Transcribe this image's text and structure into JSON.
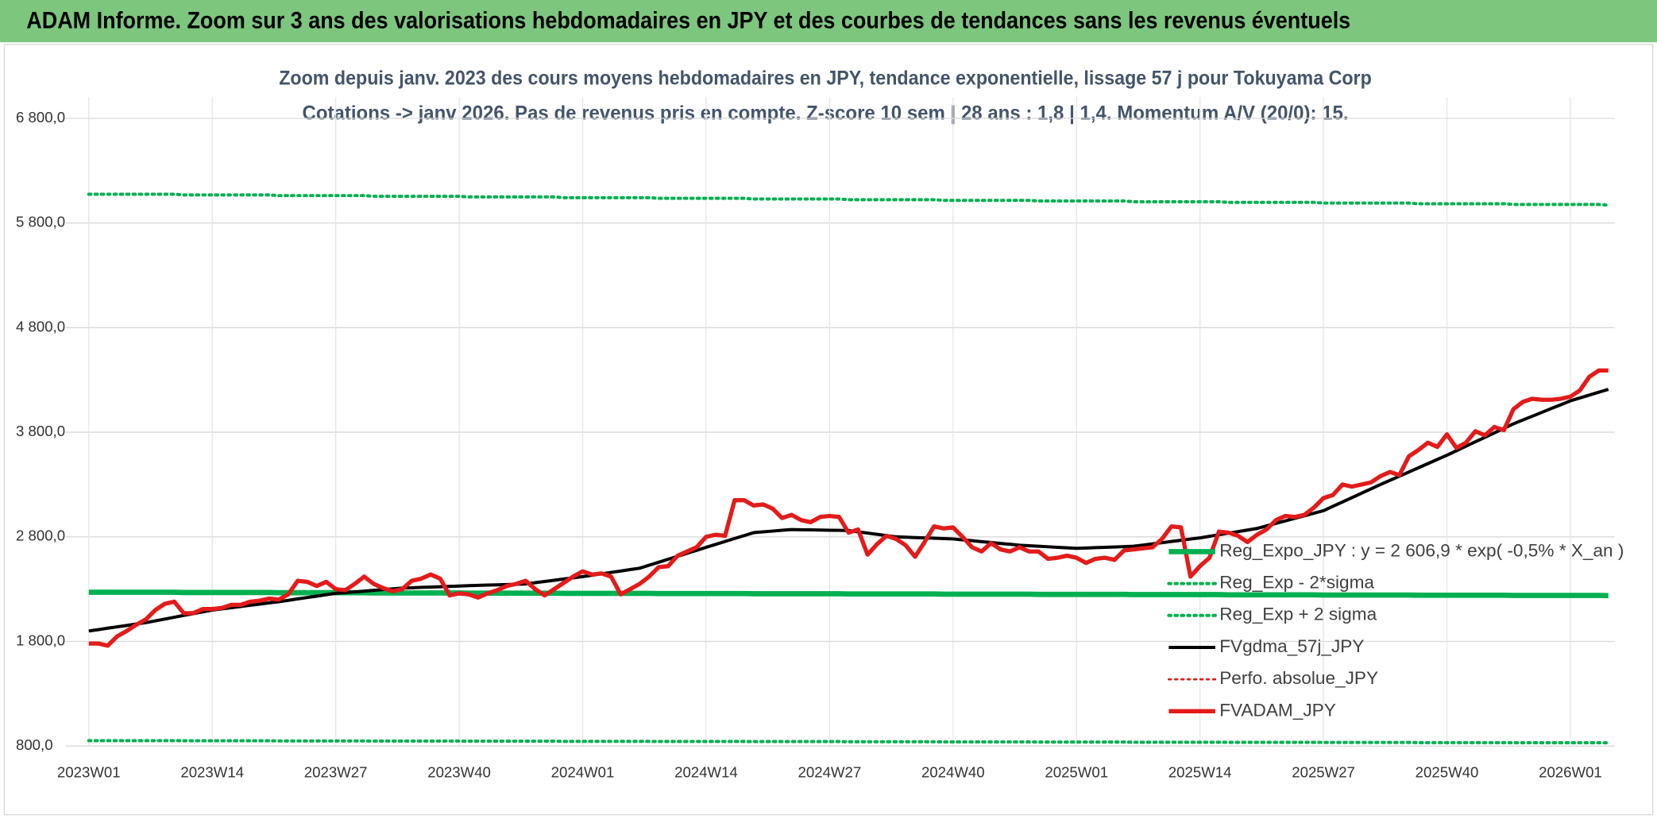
{
  "header": {
    "title": "ADAM Informe. Zoom sur 3 ans des valorisations hebdomadaires en JPY et des courbes de tendances sans les revenus éventuels"
  },
  "chart_data": {
    "type": "line",
    "title": "Zoom depuis janv. 2023 des cours moyens hebdomadaires en JPY, tendance exponentielle, lissage 57 j pour Tokuyama Corp",
    "subtitle": "Cotations -> janv 2026. Pas de revenus pris en compte. Z-score 10 sem | 28 ans : 1,8 | 1,4. Momentum A/V (20/0): 15.",
    "grid": true,
    "legend": "right",
    "ylim": [
      800,
      6800
    ],
    "yticks": [
      {
        "value": 800,
        "label": "800,0"
      },
      {
        "value": 1800,
        "label": "1 800,0"
      },
      {
        "value": 2800,
        "label": "2 800,0"
      },
      {
        "value": 3800,
        "label": "3 800,0"
      },
      {
        "value": 4800,
        "label": "4 800,0"
      },
      {
        "value": 5800,
        "label": "5 800,0"
      },
      {
        "value": 6800,
        "label": "6 800,0"
      }
    ],
    "categories": [
      "2023W01",
      null,
      null,
      null,
      null,
      null,
      null,
      null,
      null,
      null,
      null,
      null,
      null,
      "2023W14",
      null,
      null,
      null,
      null,
      null,
      null,
      null,
      null,
      null,
      null,
      null,
      null,
      "2023W27",
      null,
      null,
      null,
      null,
      null,
      null,
      null,
      null,
      null,
      null,
      null,
      null,
      "2023W40",
      null,
      null,
      null,
      null,
      null,
      null,
      null,
      null,
      null,
      null,
      null,
      null,
      "2024W01",
      null,
      null,
      null,
      null,
      null,
      null,
      null,
      null,
      null,
      null,
      null,
      null,
      "2024W14",
      null,
      null,
      null,
      null,
      null,
      null,
      null,
      null,
      null,
      null,
      null,
      null,
      "2024W27",
      null,
      null,
      null,
      null,
      null,
      null,
      null,
      null,
      null,
      null,
      null,
      null,
      "2024W40",
      null,
      null,
      null,
      null,
      null,
      null,
      null,
      null,
      null,
      null,
      null,
      null,
      "2025W01",
      null,
      null,
      null,
      null,
      null,
      null,
      null,
      null,
      null,
      null,
      null,
      null,
      "2025W14",
      null,
      null,
      null,
      null,
      null,
      null,
      null,
      null,
      null,
      null,
      null,
      null,
      "2025W27",
      null,
      null,
      null,
      null,
      null,
      null,
      null,
      null,
      null,
      null,
      null,
      null,
      "2025W40",
      null,
      null,
      null,
      null,
      null,
      null,
      null,
      null,
      null,
      null,
      null,
      null,
      "2026W01",
      null,
      null,
      null,
      null
    ],
    "series": [
      {
        "name": "Reg_Expo_JPY : y = 2 606,9 * exp( -0,5% *  X_an )",
        "color": "#00b050",
        "dash": "solid",
        "width": 5,
        "values": [
          2270,
          2270,
          2270,
          2270,
          2270,
          2270,
          2270,
          2270,
          2270,
          2270,
          2268,
          2268,
          2268,
          2268,
          2268,
          2268,
          2268,
          2268,
          2268,
          2268,
          2266,
          2266,
          2266,
          2266,
          2266,
          2266,
          2266,
          2266,
          2266,
          2266,
          2264,
          2264,
          2264,
          2264,
          2264,
          2264,
          2264,
          2264,
          2264,
          2264,
          2262,
          2262,
          2262,
          2262,
          2262,
          2262,
          2262,
          2262,
          2262,
          2262,
          2260,
          2260,
          2260,
          2260,
          2260,
          2260,
          2260,
          2260,
          2260,
          2260,
          2258,
          2258,
          2258,
          2258,
          2258,
          2258,
          2258,
          2258,
          2258,
          2258,
          2256,
          2256,
          2256,
          2256,
          2256,
          2256,
          2256,
          2256,
          2256,
          2256,
          2254,
          2254,
          2254,
          2254,
          2254,
          2254,
          2254,
          2254,
          2254,
          2254,
          2252,
          2252,
          2252,
          2252,
          2252,
          2252,
          2252,
          2252,
          2252,
          2252,
          2250,
          2250,
          2250,
          2250,
          2250,
          2250,
          2250,
          2250,
          2250,
          2250,
          2248,
          2248,
          2248,
          2248,
          2248,
          2248,
          2248,
          2248,
          2248,
          2248,
          2246,
          2246,
          2246,
          2246,
          2246,
          2246,
          2246,
          2246,
          2246,
          2246,
          2244,
          2244,
          2244,
          2244,
          2244,
          2244,
          2244,
          2244,
          2244,
          2244,
          2242,
          2242,
          2242,
          2242,
          2242,
          2242,
          2242,
          2242,
          2242,
          2242,
          2240,
          2240,
          2240,
          2240,
          2240,
          2240,
          2240,
          2240,
          2240,
          2240,
          2238
        ]
      },
      {
        "name": "Reg_Exp - 2*sigma",
        "color": "#00b050",
        "dash": "dotted",
        "width": 3,
        "values": [
          852,
          852,
          852,
          852,
          852,
          852,
          852,
          852,
          852,
          852,
          851,
          851,
          851,
          851,
          851,
          851,
          851,
          851,
          851,
          851,
          849,
          849,
          849,
          849,
          849,
          849,
          849,
          849,
          849,
          849,
          848,
          848,
          848,
          848,
          848,
          848,
          848,
          848,
          848,
          848,
          847,
          847,
          847,
          847,
          847,
          847,
          847,
          847,
          847,
          847,
          845,
          845,
          845,
          845,
          845,
          845,
          845,
          845,
          845,
          845,
          844,
          844,
          844,
          844,
          844,
          844,
          844,
          844,
          844,
          844,
          843,
          843,
          843,
          843,
          843,
          843,
          843,
          843,
          843,
          843,
          841,
          841,
          841,
          841,
          841,
          841,
          841,
          841,
          841,
          841,
          840,
          840,
          840,
          840,
          840,
          840,
          840,
          840,
          840,
          840,
          839,
          839,
          839,
          839,
          839,
          839,
          839,
          839,
          839,
          839,
          837,
          837,
          837,
          837,
          837,
          837,
          837,
          837,
          837,
          837,
          836,
          836,
          836,
          836,
          836,
          836,
          836,
          836,
          836,
          836,
          835,
          835,
          835,
          835,
          835,
          835,
          835,
          835,
          835,
          835,
          833,
          833,
          833,
          833,
          833,
          833,
          833,
          833,
          833,
          833,
          832,
          832,
          832,
          832,
          832,
          832,
          832,
          832,
          832,
          832,
          831
        ]
      },
      {
        "name": "Reg_Exp + 2 sigma",
        "color": "#00b050",
        "dash": "dotted",
        "width": 3,
        "values": [
          6075,
          6075,
          6075,
          6075,
          6075,
          6075,
          6075,
          6075,
          6075,
          6075,
          6068,
          6068,
          6068,
          6068,
          6068,
          6068,
          6068,
          6068,
          6068,
          6068,
          6062,
          6062,
          6062,
          6062,
          6062,
          6062,
          6062,
          6062,
          6062,
          6062,
          6055,
          6055,
          6055,
          6055,
          6055,
          6055,
          6055,
          6055,
          6055,
          6055,
          6049,
          6049,
          6049,
          6049,
          6049,
          6049,
          6049,
          6049,
          6049,
          6049,
          6042,
          6042,
          6042,
          6042,
          6042,
          6042,
          6042,
          6042,
          6042,
          6042,
          6036,
          6036,
          6036,
          6036,
          6036,
          6036,
          6036,
          6036,
          6036,
          6036,
          6029,
          6029,
          6029,
          6029,
          6029,
          6029,
          6029,
          6029,
          6029,
          6029,
          6023,
          6023,
          6023,
          6023,
          6023,
          6023,
          6023,
          6023,
          6023,
          6023,
          6016,
          6016,
          6016,
          6016,
          6016,
          6016,
          6016,
          6016,
          6016,
          6016,
          6010,
          6010,
          6010,
          6010,
          6010,
          6010,
          6010,
          6010,
          6010,
          6010,
          6003,
          6003,
          6003,
          6003,
          6003,
          6003,
          6003,
          6003,
          6003,
          6003,
          5997,
          5997,
          5997,
          5997,
          5997,
          5997,
          5997,
          5997,
          5997,
          5997,
          5990,
          5990,
          5990,
          5990,
          5990,
          5990,
          5990,
          5990,
          5990,
          5990,
          5984,
          5984,
          5984,
          5984,
          5984,
          5984,
          5984,
          5984,
          5984,
          5984,
          5977,
          5977,
          5977,
          5977,
          5977,
          5977,
          5977,
          5977,
          5977,
          5977,
          5971
        ]
      },
      {
        "name": "FVgdma_57j_JPY",
        "color": "#000000",
        "dash": "solid",
        "width": 3,
        "values": [
          1900,
          1913,
          1927,
          1940,
          1953,
          1967,
          1980,
          1997,
          2014,
          2031,
          2049,
          2066,
          2083,
          2100,
          2111,
          2123,
          2134,
          2146,
          2157,
          2169,
          2180,
          2193,
          2207,
          2220,
          2233,
          2247,
          2260,
          2267,
          2274,
          2281,
          2289,
          2296,
          2303,
          2310,
          2313,
          2317,
          2320,
          2323,
          2327,
          2330,
          2333,
          2336,
          2339,
          2341,
          2344,
          2347,
          2350,
          2362,
          2373,
          2385,
          2397,
          2408,
          2420,
          2433,
          2447,
          2460,
          2473,
          2487,
          2500,
          2529,
          2557,
          2586,
          2614,
          2643,
          2671,
          2700,
          2728,
          2756,
          2784,
          2812,
          2840,
          2848,
          2855,
          2863,
          2870,
          2868,
          2867,
          2865,
          2863,
          2862,
          2860,
          2848,
          2836,
          2824,
          2812,
          2800,
          2797,
          2793,
          2790,
          2787,
          2783,
          2780,
          2771,
          2763,
          2754,
          2746,
          2737,
          2729,
          2720,
          2715,
          2710,
          2705,
          2700,
          2695,
          2690,
          2693,
          2697,
          2700,
          2703,
          2707,
          2710,
          2721,
          2733,
          2744,
          2756,
          2767,
          2779,
          2790,
          2805,
          2820,
          2835,
          2850,
          2865,
          2880,
          2904,
          2929,
          2953,
          2977,
          3001,
          3026,
          3050,
          3092,
          3133,
          3175,
          3217,
          3258,
          3300,
          3340,
          3380,
          3420,
          3460,
          3500,
          3540,
          3580,
          3623,
          3666,
          3709,
          3751,
          3794,
          3837,
          3880,
          3917,
          3953,
          3990,
          4027,
          4063,
          4100,
          4128,
          4155,
          4183,
          4210
        ]
      },
      {
        "name": "Perfo. absolue_JPY",
        "color": "#e31b1b",
        "dash": "dotted",
        "width": 2
      },
      {
        "name": "FVADAM_JPY",
        "color": "#e31b1b",
        "dash": "solid",
        "width": 4,
        "values": [
          1780,
          1780,
          1760,
          1850,
          1900,
          1960,
          2010,
          2100,
          2160,
          2180,
          2070,
          2070,
          2110,
          2110,
          2120,
          2150,
          2150,
          2180,
          2190,
          2210,
          2200,
          2250,
          2380,
          2370,
          2330,
          2370,
          2300,
          2290,
          2350,
          2420,
          2350,
          2310,
          2280,
          2300,
          2380,
          2400,
          2440,
          2400,
          2240,
          2260,
          2250,
          2220,
          2260,
          2290,
          2330,
          2350,
          2380,
          2300,
          2240,
          2300,
          2360,
          2420,
          2470,
          2440,
          2450,
          2420,
          2250,
          2300,
          2350,
          2420,
          2510,
          2520,
          2620,
          2660,
          2700,
          2800,
          2820,
          2810,
          3150,
          3150,
          3100,
          3110,
          3070,
          2980,
          3010,
          2960,
          2940,
          2990,
          3000,
          2990,
          2840,
          2870,
          2630,
          2730,
          2810,
          2780,
          2720,
          2610,
          2750,
          2900,
          2880,
          2890,
          2800,
          2700,
          2660,
          2740,
          2680,
          2660,
          2700,
          2660,
          2660,
          2590,
          2600,
          2620,
          2600,
          2550,
          2590,
          2600,
          2580,
          2670,
          2680,
          2690,
          2700,
          2780,
          2900,
          2890,
          2420,
          2520,
          2600,
          2850,
          2840,
          2810,
          2750,
          2820,
          2870,
          2960,
          3000,
          2990,
          3010,
          3080,
          3170,
          3200,
          3300,
          3280,
          3300,
          3320,
          3380,
          3420,
          3390,
          3570,
          3630,
          3700,
          3660,
          3780,
          3650,
          3700,
          3810,
          3770,
          3850,
          3820,
          4020,
          4090,
          4120,
          4110,
          4110,
          4120,
          4140,
          4200,
          4330,
          4390,
          4390
        ]
      }
    ]
  }
}
